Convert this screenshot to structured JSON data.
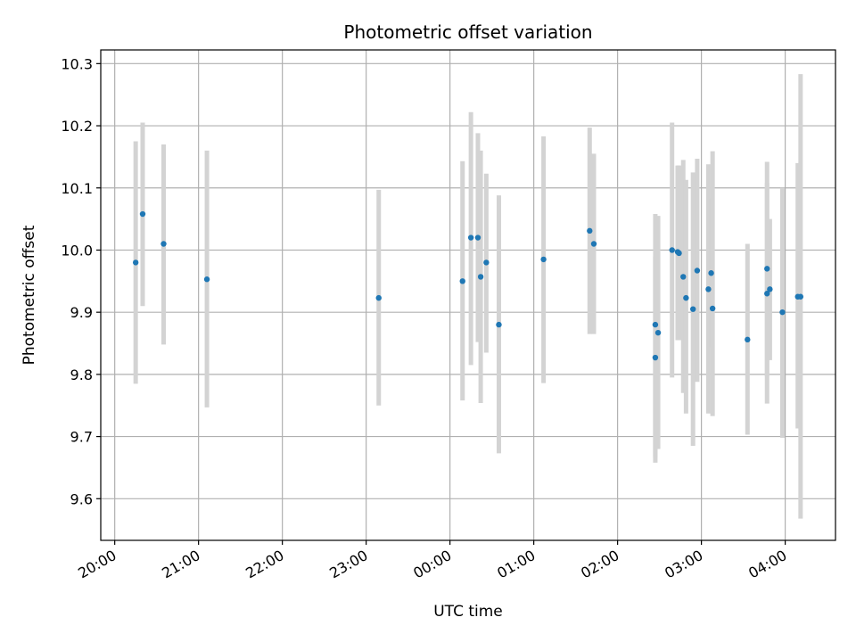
{
  "chart_data": {
    "type": "scatter",
    "title": "Photometric offset variation",
    "xlabel": "UTC time",
    "ylabel": "Photometric offset",
    "x_axis": "time",
    "x_ticks": [
      "20:00",
      "21:00",
      "22:00",
      "23:00",
      "00:00",
      "01:00",
      "02:00",
      "03:00",
      "04:00"
    ],
    "y_ticks": [
      "9.6",
      "9.7",
      "9.8",
      "9.9",
      "10.0",
      "10.1",
      "10.2",
      "10.3"
    ],
    "ylim": [
      9.533,
      10.322
    ],
    "xlim": [
      "19:50",
      "04:36"
    ],
    "grid": true,
    "marker_color": "#1f77b4",
    "errorbar_color": "#d3d3d3",
    "points": [
      {
        "t": "20:15",
        "y": 9.98,
        "lo": 9.785,
        "hi": 10.175
      },
      {
        "t": "20:20",
        "y": 10.058,
        "lo": 9.91,
        "hi": 10.205
      },
      {
        "t": "20:35",
        "y": 10.01,
        "lo": 9.848,
        "hi": 10.17
      },
      {
        "t": "21:06",
        "y": 9.953,
        "lo": 9.747,
        "hi": 10.16
      },
      {
        "t": "23:09",
        "y": 9.923,
        "lo": 9.75,
        "hi": 10.097
      },
      {
        "t": "00:09",
        "y": 9.95,
        "lo": 9.758,
        "hi": 10.143
      },
      {
        "t": "00:15",
        "y": 10.02,
        "lo": 9.815,
        "hi": 10.222
      },
      {
        "t": "00:20",
        "y": 10.02,
        "lo": 9.852,
        "hi": 10.188
      },
      {
        "t": "00:22",
        "y": 9.957,
        "lo": 9.754,
        "hi": 10.16
      },
      {
        "t": "00:26",
        "y": 9.98,
        "lo": 9.835,
        "hi": 10.123
      },
      {
        "t": "00:35",
        "y": 9.88,
        "lo": 9.673,
        "hi": 10.088
      },
      {
        "t": "01:07",
        "y": 9.985,
        "lo": 9.786,
        "hi": 10.183
      },
      {
        "t": "01:40",
        "y": 10.031,
        "lo": 9.865,
        "hi": 10.197
      },
      {
        "t": "01:43",
        "y": 10.01,
        "lo": 9.865,
        "hi": 10.155
      },
      {
        "t": "02:27",
        "y": 9.88,
        "lo": 9.658,
        "hi": 10.058
      },
      {
        "t": "02:27",
        "y": 9.827,
        "lo": 9.667,
        "hi": 9.99
      },
      {
        "t": "02:29",
        "y": 9.867,
        "lo": 9.68,
        "hi": 10.055
      },
      {
        "t": "02:39",
        "y": 10.0,
        "lo": 9.795,
        "hi": 10.205
      },
      {
        "t": "02:43",
        "y": 9.997,
        "lo": 9.855,
        "hi": 10.136
      },
      {
        "t": "02:44",
        "y": 9.995,
        "lo": 9.855,
        "hi": 10.136
      },
      {
        "t": "02:47",
        "y": 9.957,
        "lo": 9.77,
        "hi": 10.145
      },
      {
        "t": "02:49",
        "y": 9.923,
        "lo": 9.737,
        "hi": 10.113
      },
      {
        "t": "02:54",
        "y": 9.905,
        "lo": 9.685,
        "hi": 10.125
      },
      {
        "t": "02:57",
        "y": 9.967,
        "lo": 9.788,
        "hi": 10.147
      },
      {
        "t": "03:05",
        "y": 9.937,
        "lo": 9.737,
        "hi": 10.138
      },
      {
        "t": "03:07",
        "y": 9.963,
        "lo": 9.843,
        "hi": 10.083
      },
      {
        "t": "03:08",
        "y": 9.906,
        "lo": 9.733,
        "hi": 10.159
      },
      {
        "t": "03:33",
        "y": 9.856,
        "lo": 9.703,
        "hi": 10.01
      },
      {
        "t": "03:47",
        "y": 9.97,
        "lo": 9.797,
        "hi": 10.142
      },
      {
        "t": "03:47",
        "y": 9.93,
        "lo": 9.753,
        "hi": 10.108
      },
      {
        "t": "03:49",
        "y": 9.937,
        "lo": 9.823,
        "hi": 10.05
      },
      {
        "t": "03:58",
        "y": 9.9,
        "lo": 9.698,
        "hi": 10.1
      },
      {
        "t": "04:09",
        "y": 9.925,
        "lo": 9.713,
        "hi": 10.14
      },
      {
        "t": "04:11",
        "y": 9.925,
        "lo": 9.568,
        "hi": 10.283
      }
    ]
  }
}
